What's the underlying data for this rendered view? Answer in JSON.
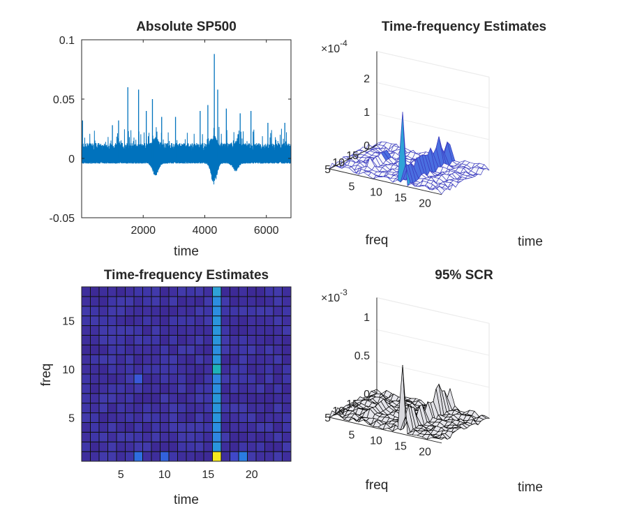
{
  "chart_data": [
    {
      "type": "line",
      "title": "Absolute SP500",
      "xlabel": "time",
      "ylabel": "",
      "xlim": [
        0,
        6800
      ],
      "ylim": [
        -0.05,
        0.1
      ],
      "x_ticks": [
        "2000",
        "4000",
        "6000"
      ],
      "y_ticks": [
        "-0.05",
        "0",
        "0.05",
        "0.1"
      ],
      "color": "#0072BD",
      "baseline_band": [
        -0.004,
        0.01
      ],
      "dip_regions": [
        {
          "center": 2400,
          "depth": -0.01
        },
        {
          "center": 4300,
          "depth": -0.016
        },
        {
          "center": 5000,
          "depth": -0.006
        }
      ],
      "spikes": [
        {
          "x": 30,
          "y": 0.032
        },
        {
          "x": 1000,
          "y": 0.028
        },
        {
          "x": 1200,
          "y": 0.032
        },
        {
          "x": 1500,
          "y": 0.06
        },
        {
          "x": 1850,
          "y": 0.058
        },
        {
          "x": 2100,
          "y": 0.04
        },
        {
          "x": 2300,
          "y": 0.05
        },
        {
          "x": 2600,
          "y": 0.035
        },
        {
          "x": 3050,
          "y": 0.035
        },
        {
          "x": 3850,
          "y": 0.04
        },
        {
          "x": 4100,
          "y": 0.045
        },
        {
          "x": 4310,
          "y": 0.088
        },
        {
          "x": 4420,
          "y": 0.058
        },
        {
          "x": 4700,
          "y": 0.042
        },
        {
          "x": 5150,
          "y": 0.038
        },
        {
          "x": 5500,
          "y": 0.04
        },
        {
          "x": 6050,
          "y": 0.03
        },
        {
          "x": 6600,
          "y": 0.03
        }
      ]
    },
    {
      "type": "surface",
      "title": "Time-frequency Estimates",
      "exponent_label": "×10",
      "exponent": "-4",
      "xlabel": "time",
      "ylabel": "freq",
      "time_ticks": [
        "5",
        "10",
        "15",
        "20"
      ],
      "freq_ticks": [
        "5",
        "10",
        "15"
      ],
      "z_ticks": [
        "0",
        "1",
        "2"
      ],
      "z_max": 2.8,
      "peak": {
        "time": 16,
        "freq": 1,
        "value": 2.2
      },
      "colormap": "parula",
      "edge_color": "#3b3bbf"
    },
    {
      "type": "heatmap",
      "title": "Time-frequency Estimates",
      "xlabel": "time",
      "ylabel": "freq",
      "x_ticks": [
        "5",
        "10",
        "15",
        "20"
      ],
      "y_ticks": [
        "5",
        "10",
        "15"
      ],
      "n_time": 24,
      "n_freq": 18,
      "background_color": "#3e2e9c",
      "highlight_column": 16,
      "highlight_cell": {
        "time": 16,
        "freq": 1,
        "color": "#f5e91f"
      },
      "accent_cells": [
        {
          "time": 16,
          "freq": 18,
          "color": "#2fa3d7"
        },
        {
          "time": 16,
          "freq": 10,
          "color": "#1fb2b9"
        },
        {
          "time": 16,
          "freq": 7,
          "color": "#2996d9"
        },
        {
          "time": 7,
          "freq": 9,
          "color": "#3a58d8"
        },
        {
          "time": 7,
          "freq": 1,
          "color": "#2e6ee0"
        },
        {
          "time": 10,
          "freq": 1,
          "color": "#3262dc"
        },
        {
          "time": 19,
          "freq": 1,
          "color": "#2a7ce2"
        },
        {
          "time": 18,
          "freq": 1,
          "color": "#4048c8"
        }
      ]
    },
    {
      "type": "surface",
      "title": "95% SCR",
      "exponent_label": "×10",
      "exponent": "-3",
      "xlabel": "time",
      "ylabel": "freq",
      "time_ticks": [
        "5",
        "10",
        "15",
        "20"
      ],
      "freq_ticks": [
        "5",
        "10",
        "15"
      ],
      "z_ticks": [
        "0",
        "0.5",
        "1"
      ],
      "z_max": 1.25,
      "peak": {
        "time": 16,
        "freq": 1,
        "value": 0.9
      },
      "colormap": "gray",
      "edge_color": "#000000"
    }
  ]
}
